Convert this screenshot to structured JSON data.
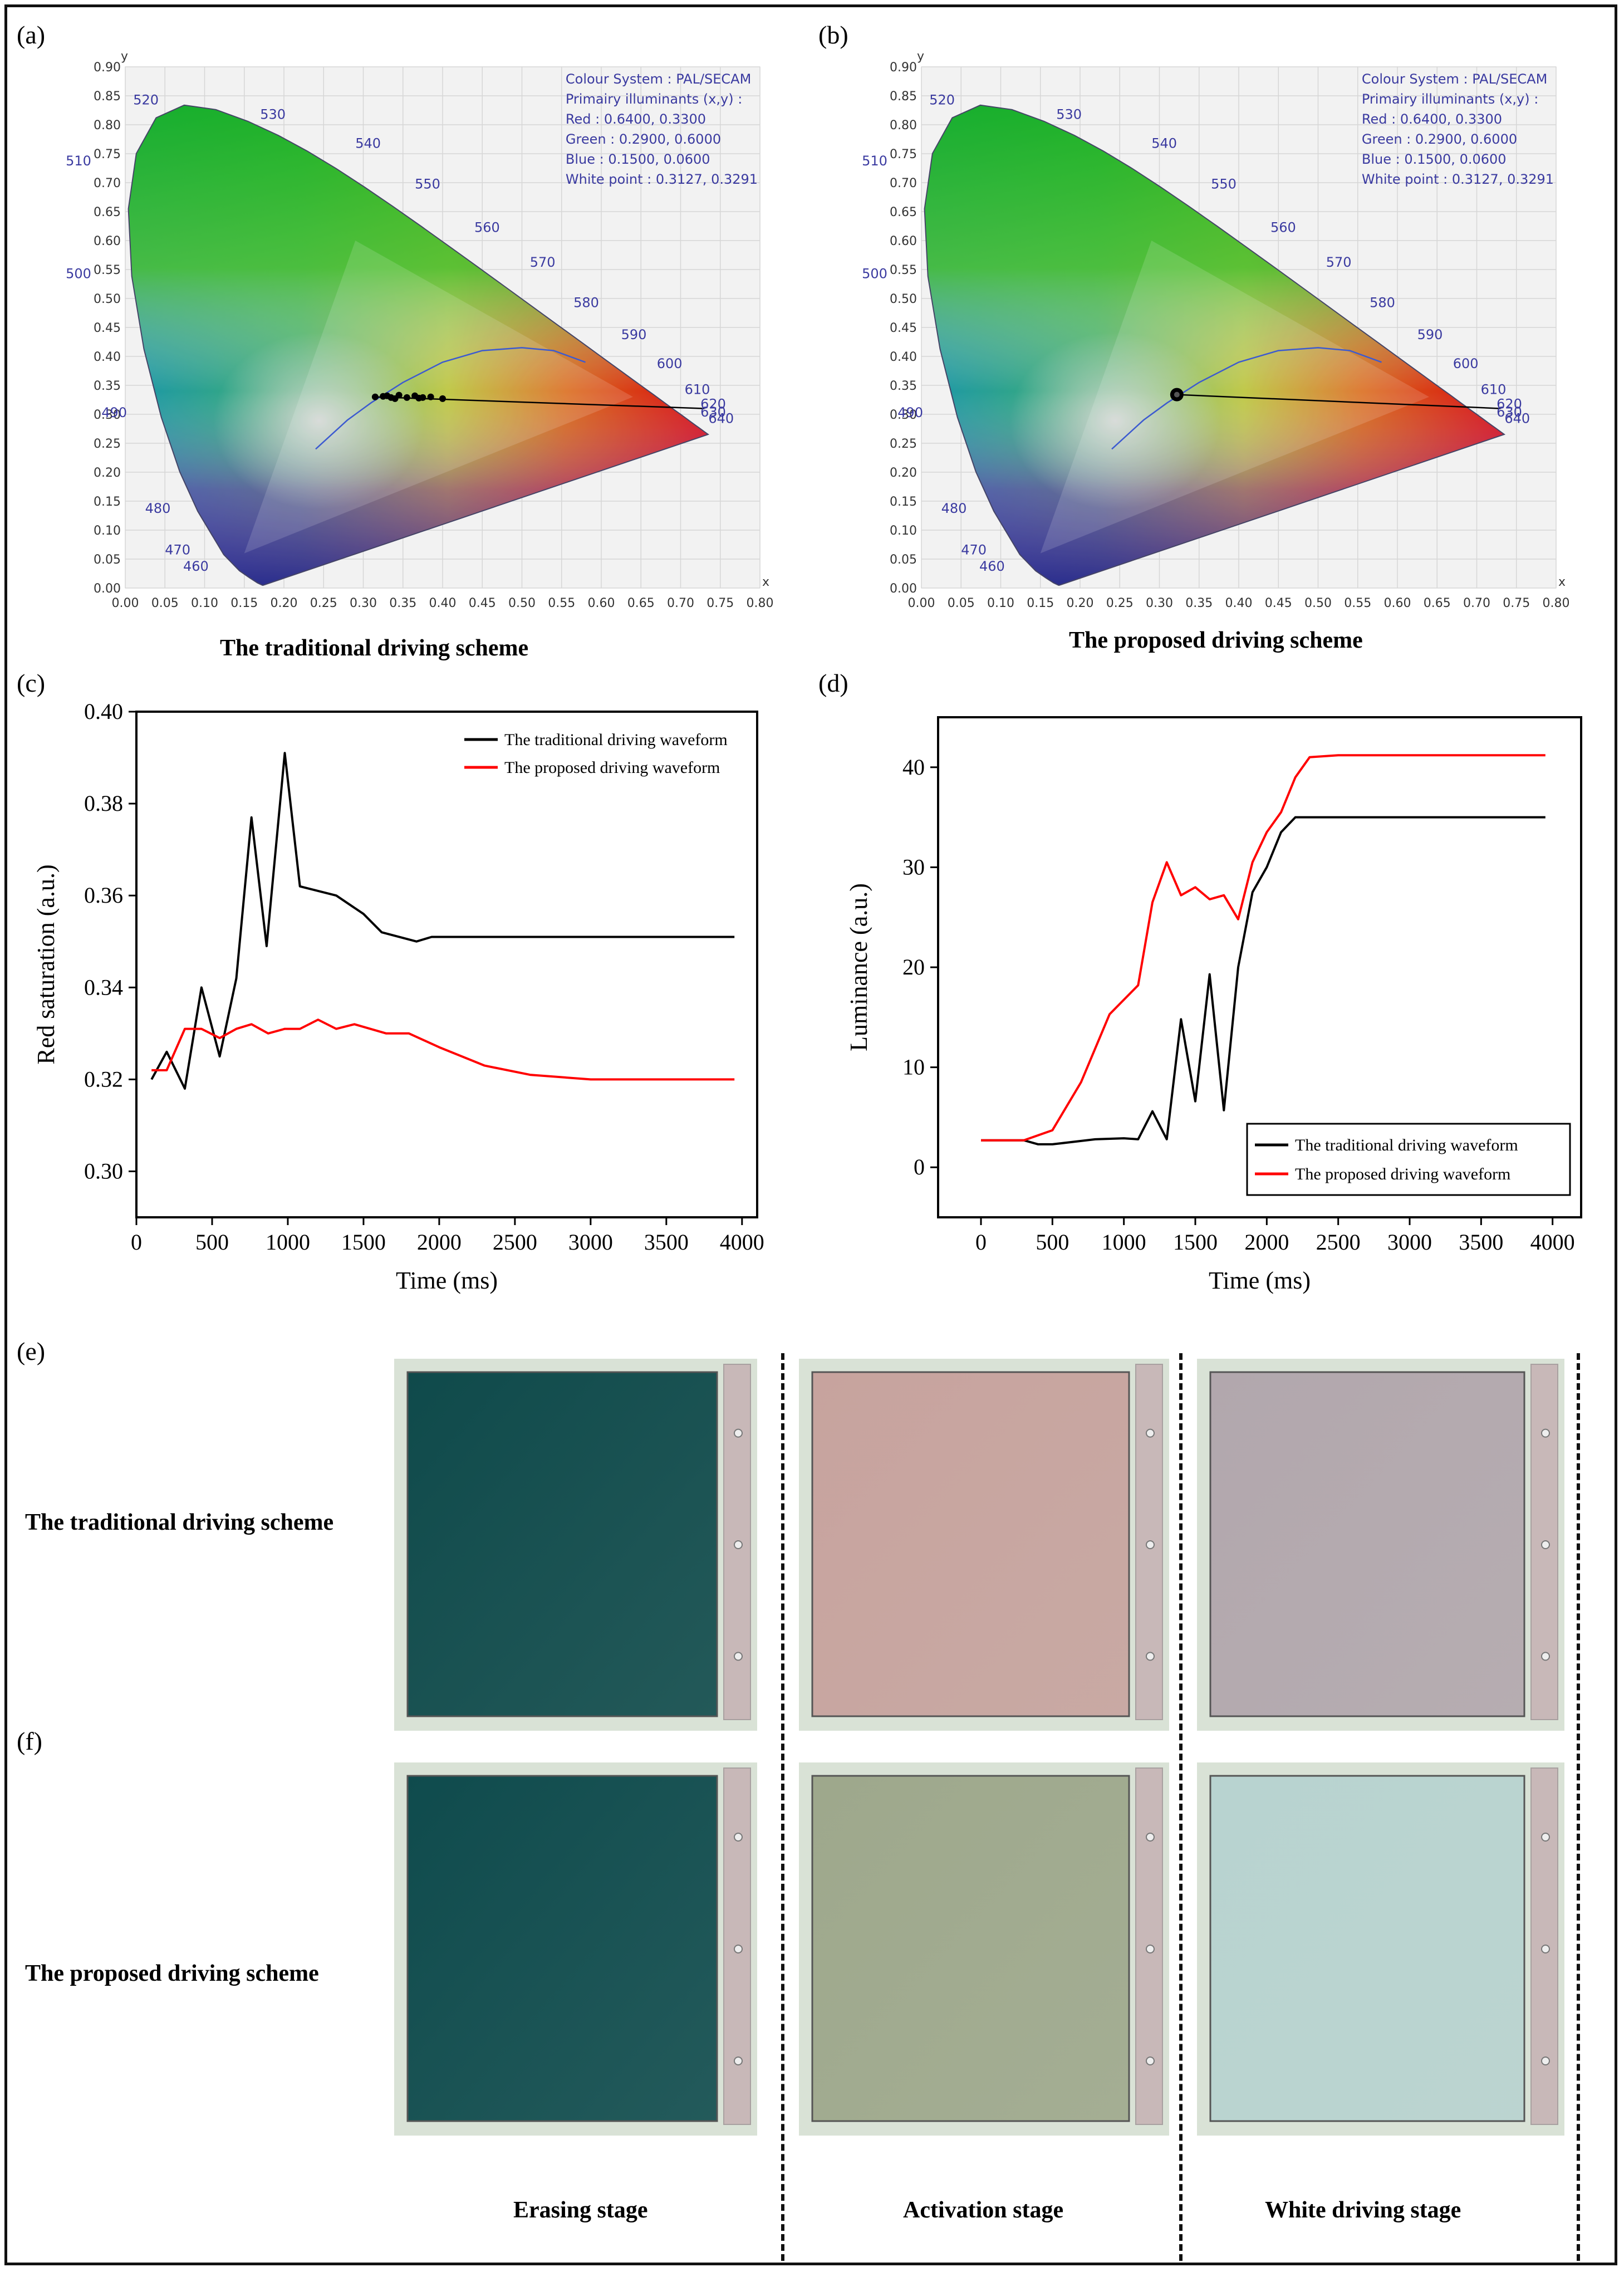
{
  "panels": {
    "a": {
      "label": "(a)",
      "caption": "The traditional driving scheme"
    },
    "b": {
      "label": "(b)",
      "caption": "The proposed driving scheme"
    },
    "c": {
      "label": "(c)"
    },
    "d": {
      "label": "(d)"
    },
    "e": {
      "label": "(e)",
      "row_label": "The traditional driving scheme"
    },
    "f": {
      "label": "(f)",
      "row_label": "The proposed driving scheme"
    }
  },
  "cie": {
    "y_axis_name": "y",
    "x_axis_name": "x",
    "x_ticks": [
      "0.00",
      "0.05",
      "0.10",
      "0.15",
      "0.20",
      "0.25",
      "0.30",
      "0.35",
      "0.40",
      "0.45",
      "0.50",
      "0.55",
      "0.60",
      "0.65",
      "0.70",
      "0.75",
      "0.80"
    ],
    "y_ticks": [
      "0.00",
      "0.05",
      "0.10",
      "0.15",
      "0.20",
      "0.25",
      "0.30",
      "0.35",
      "0.40",
      "0.45",
      "0.50",
      "0.55",
      "0.60",
      "0.65",
      "0.70",
      "0.75",
      "0.80",
      "0.85",
      "0.90"
    ],
    "wavelength_labels": [
      "520",
      "530",
      "540",
      "550",
      "560",
      "570",
      "580",
      "590",
      "600",
      "610",
      "620",
      "630",
      "640",
      "510",
      "500",
      "490",
      "480",
      "470",
      "460"
    ],
    "info_lines": [
      "Colour System : PAL/SECAM",
      "Primairy illuminants (x,y) :",
      "Red : 0.6400, 0.3300",
      "Green : 0.2900, 0.6000",
      "Blue : 0.1500, 0.0600",
      "White point : 0.3127, 0.3291"
    ]
  },
  "chart_data": [
    {
      "type": "line",
      "panel": "c",
      "xlabel": "Time (ms)",
      "ylabel": "Red saturation (a.u.)",
      "xlim": [
        0,
        4100
      ],
      "ylim": [
        0.29,
        0.4
      ],
      "x_ticks": [
        "0",
        "500",
        "1000",
        "1500",
        "2000",
        "2500",
        "3000",
        "3500",
        "4000"
      ],
      "y_ticks": [
        "0.30",
        "0.32",
        "0.34",
        "0.36",
        "0.38",
        "0.40"
      ],
      "series": [
        {
          "name": "The traditional driving waveform",
          "color": "#000000",
          "x": [
            100,
            200,
            320,
            430,
            550,
            660,
            760,
            860,
            980,
            1080,
            1200,
            1320,
            1500,
            1620,
            1850,
            1950,
            2100,
            2500,
            3000,
            3500,
            3950
          ],
          "y": [
            0.32,
            0.326,
            0.318,
            0.34,
            0.325,
            0.342,
            0.377,
            0.349,
            0.391,
            0.362,
            0.361,
            0.36,
            0.356,
            0.352,
            0.35,
            0.351,
            0.351,
            0.351,
            0.351,
            0.351,
            0.351
          ]
        },
        {
          "name": "The proposed driving waveform",
          "color": "#ff0000",
          "x": [
            100,
            200,
            320,
            430,
            550,
            660,
            760,
            870,
            980,
            1080,
            1200,
            1320,
            1440,
            1650,
            1800,
            2000,
            2300,
            2600,
            3000,
            3500,
            3950
          ],
          "y": [
            0.322,
            0.322,
            0.331,
            0.331,
            0.329,
            0.331,
            0.332,
            0.33,
            0.331,
            0.331,
            0.333,
            0.331,
            0.332,
            0.33,
            0.33,
            0.327,
            0.323,
            0.321,
            0.32,
            0.32,
            0.32
          ]
        }
      ]
    },
    {
      "type": "line",
      "panel": "d",
      "xlabel": "Time (ms)",
      "ylabel": "Luminance (a.u.)",
      "xlim": [
        -300,
        4200
      ],
      "ylim": [
        -5,
        45
      ],
      "x_ticks": [
        "0",
        "500",
        "1000",
        "1500",
        "2000",
        "2500",
        "3000",
        "3500",
        "4000"
      ],
      "y_ticks": [
        "0",
        "10",
        "20",
        "30",
        "40"
      ],
      "series": [
        {
          "name": "The traditional driving waveform",
          "color": "#000000",
          "x": [
            0,
            300,
            400,
            500,
            800,
            1000,
            1100,
            1200,
            1300,
            1400,
            1500,
            1600,
            1700,
            1800,
            1900,
            2000,
            2100,
            2200,
            2300,
            2500,
            3000,
            3500,
            3950
          ],
          "y": [
            2.7,
            2.7,
            2.3,
            2.3,
            2.8,
            2.9,
            2.8,
            5.6,
            2.8,
            14.8,
            6.6,
            19.3,
            5.7,
            20.0,
            27.5,
            30.0,
            33.5,
            35.0,
            35.0,
            35.0,
            35.0,
            35.0,
            35.0
          ]
        },
        {
          "name": "The proposed driving waveform",
          "color": "#ff0000",
          "x": [
            0,
            300,
            500,
            700,
            900,
            1100,
            1200,
            1300,
            1400,
            1500,
            1600,
            1700,
            1800,
            1900,
            2000,
            2100,
            2200,
            2300,
            2500,
            3000,
            3500,
            3950
          ],
          "y": [
            2.7,
            2.7,
            3.7,
            8.5,
            15.3,
            18.2,
            26.5,
            30.5,
            27.2,
            28.0,
            26.8,
            27.2,
            24.8,
            30.5,
            33.5,
            35.5,
            39.0,
            41.0,
            41.2,
            41.2,
            41.2,
            41.2
          ]
        }
      ]
    }
  ],
  "photos": {
    "stages": [
      "Erasing stage",
      "Activation stage",
      "White driving stage"
    ],
    "traditional_colors": [
      "#0f4a4b",
      "#c7a39e",
      "#b2a7ad"
    ],
    "proposed_colors": [
      "#0f4b4d",
      "#9ea88c",
      "#b8d3d0"
    ]
  }
}
